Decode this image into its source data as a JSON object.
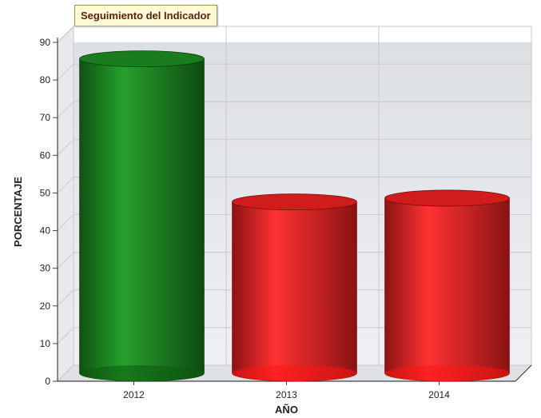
{
  "chart_data": {
    "type": "bar",
    "style": "3d-cylinder",
    "title": "Seguimiento del Indicador",
    "xlabel": "AÑO",
    "ylabel": "PORCENTAJE",
    "categories": [
      "2012",
      "2013",
      "2014"
    ],
    "values": [
      83.5,
      45.5,
      46.5
    ],
    "bar_colors": [
      "#1f8a22",
      "#e32020",
      "#e32020"
    ],
    "ylim": [
      0,
      90
    ],
    "yticks": [
      "0",
      "10",
      "20",
      "30",
      "40",
      "50",
      "60",
      "70",
      "80",
      "90"
    ],
    "grid": true,
    "legend": "none"
  }
}
